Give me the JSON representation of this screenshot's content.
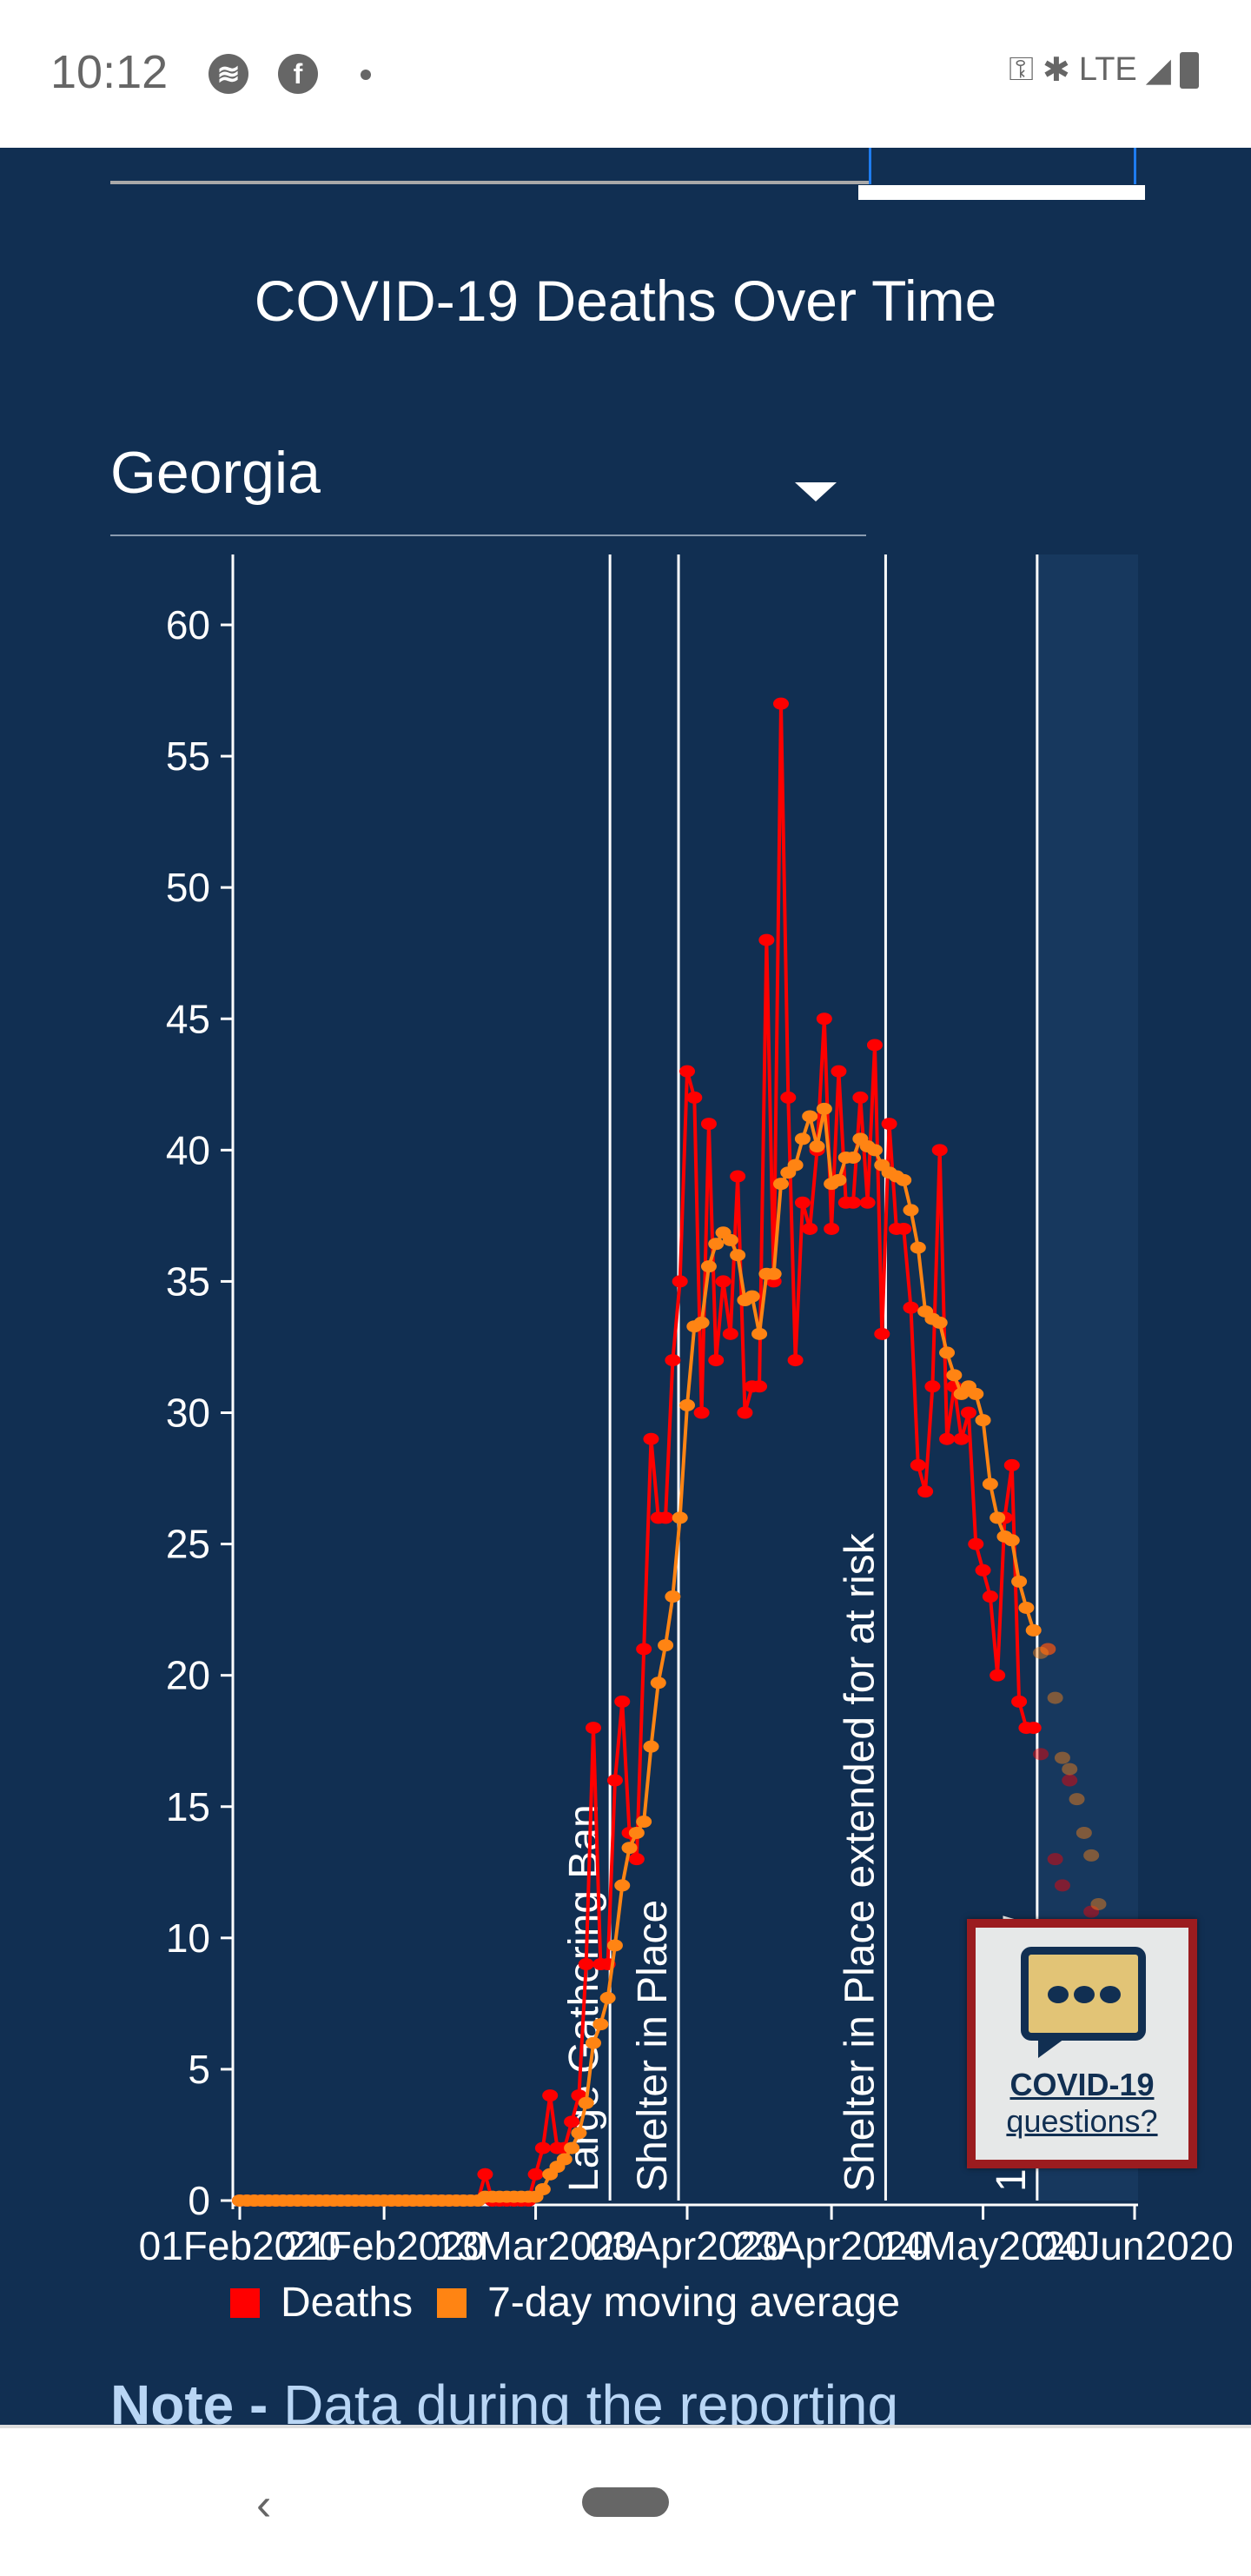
{
  "status_bar": {
    "time": "10:12",
    "network": "LTE",
    "icons": [
      "spotify-icon",
      "facebook-icon",
      "notification-dot-icon",
      "vpn-key-icon",
      "bluetooth-icon",
      "signal-icon",
      "battery-icon"
    ]
  },
  "page": {
    "title": "COVID-19 Deaths Over Time",
    "state_select": {
      "value": "Georgia"
    },
    "note": {
      "bold": "Note -",
      "text": " Data during the reporting"
    },
    "chat_widget": {
      "line1": "COVID-19",
      "line2": "questions?"
    }
  },
  "colors": {
    "background": "#112f52",
    "deaths": "#ff0000",
    "average": "#ff8413",
    "provisional_band": "#17385e",
    "chat_border": "#9b1c1f"
  },
  "chart_data": {
    "type": "line",
    "title": "COVID-19 Deaths Over Time",
    "start_date": "2020-02-01",
    "ylim": [
      0,
      62
    ],
    "yticks": [
      0,
      5,
      10,
      15,
      20,
      25,
      30,
      35,
      40,
      45,
      50,
      55,
      60
    ],
    "xticks": [
      {
        "day": 0,
        "label": "01Feb2020"
      },
      {
        "day": 20,
        "label": "21Feb2020"
      },
      {
        "day": 41,
        "label": "13Mar2020"
      },
      {
        "day": 62,
        "label": "03Apr2020"
      },
      {
        "day": 82,
        "label": "23Apr2020"
      },
      {
        "day": 103,
        "label": "14May2020"
      },
      {
        "day": 124,
        "label": "04Jun2020"
      }
    ],
    "xlim_days": [
      0,
      124
    ],
    "events": [
      {
        "day": 51.3,
        "label": "Large Gathering Ban"
      },
      {
        "day": 60.8,
        "label": "Shelter in Place"
      },
      {
        "day": 89.5,
        "label": "Shelter in Place extended for at risk"
      },
      {
        "day": 110.5,
        "label": "14 day window"
      }
    ],
    "provisional_from_day": 110.5,
    "legend": [
      {
        "label": "Deaths",
        "color": "#ff0000"
      },
      {
        "label": "7-day moving average",
        "color": "#ff8413"
      }
    ],
    "legend_position": "bottom",
    "moving_average_window": 7,
    "series": [
      {
        "name": "Deaths",
        "values": [
          0,
          0,
          0,
          0,
          0,
          0,
          0,
          0,
          0,
          0,
          0,
          0,
          0,
          0,
          0,
          0,
          0,
          0,
          0,
          0,
          0,
          0,
          0,
          0,
          0,
          0,
          0,
          0,
          0,
          0,
          0,
          0,
          0,
          0,
          1,
          0,
          0,
          0,
          0,
          0,
          0,
          1,
          2,
          4,
          2,
          2,
          3,
          4,
          9,
          18,
          9,
          9,
          16,
          19,
          14,
          13,
          21,
          29,
          26,
          26,
          32,
          35,
          43,
          42,
          30,
          41,
          32,
          35,
          33,
          39,
          30,
          31,
          31,
          48,
          35,
          57,
          42,
          32,
          38,
          37,
          40,
          45,
          37,
          43,
          38,
          38,
          42,
          38,
          44,
          33,
          41,
          37,
          37,
          34,
          28,
          27,
          31,
          40,
          29,
          31,
          29,
          30,
          25,
          24,
          23,
          20,
          26,
          28,
          19,
          18,
          18,
          17,
          21,
          13,
          12,
          16,
          10,
          9,
          11,
          8,
          7,
          6,
          5,
          4
        ]
      }
    ]
  }
}
